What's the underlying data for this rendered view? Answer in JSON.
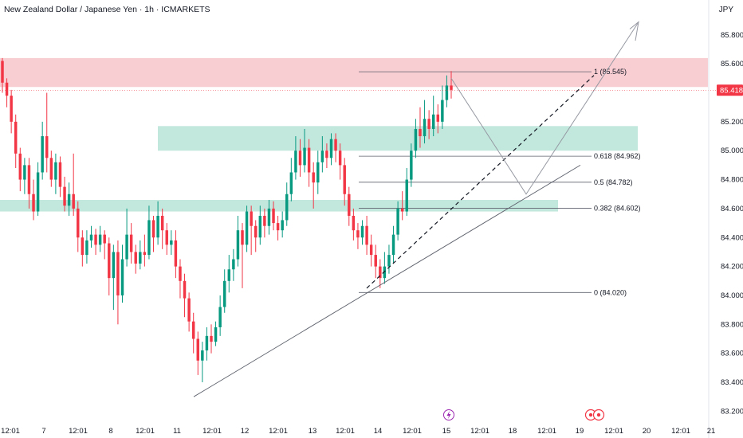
{
  "header": {
    "title": "New Zealand Dollar / Japanese Yen · 1h · ICMARKETS",
    "currency": "JPY"
  },
  "colors": {
    "up": "#089981",
    "down": "#f23645",
    "supply_zone": "#f7c6cb",
    "demand_zone": "#b7e4d8",
    "price_tag": "#f23645",
    "event_icon": "#9c27b0",
    "event_icon_red": "#f23645"
  },
  "current_price": {
    "label": "85.418",
    "value": 85.418
  },
  "event_icons": [
    {
      "name": "lightning-icon",
      "after_tick": "15"
    },
    {
      "name": "economic-event-icon",
      "after_tick": "19"
    }
  ],
  "chart_data": {
    "type": "candlestick",
    "ylim": [
      83.18,
      85.92
    ],
    "y_ticks": [
      "85.800",
      "85.600",
      "85.200",
      "85.000",
      "84.800",
      "84.600",
      "84.400",
      "84.200",
      "84.000",
      "83.800",
      "83.600",
      "83.400",
      "83.200"
    ],
    "x_ticks": [
      "12:01",
      "7",
      "12:01",
      "8",
      "12:01",
      "11",
      "12:01",
      "12",
      "12:01",
      "13",
      "12:01",
      "14",
      "12:01",
      "15",
      "12:01",
      "18",
      "12:01",
      "19",
      "12:01",
      "20",
      "12:01",
      "21"
    ],
    "candles": [
      [
        85.62,
        85.47,
        85.64,
        85.4
      ],
      [
        85.47,
        85.38,
        85.5,
        85.3
      ],
      [
        85.38,
        85.2,
        85.42,
        85.12
      ],
      [
        85.2,
        84.98,
        85.25,
        84.88
      ],
      [
        84.98,
        84.8,
        85.02,
        84.72
      ],
      [
        84.8,
        84.9,
        84.95,
        84.7
      ],
      [
        84.9,
        84.7,
        84.95,
        84.6
      ],
      [
        84.7,
        84.58,
        84.8,
        84.52
      ],
      [
        84.58,
        84.85,
        84.92,
        84.55
      ],
      [
        84.85,
        85.1,
        85.2,
        84.8
      ],
      [
        85.1,
        84.95,
        85.4,
        84.85
      ],
      [
        84.95,
        84.8,
        85.0,
        84.75
      ],
      [
        84.8,
        84.92,
        84.98,
        84.7
      ],
      [
        84.92,
        84.75,
        84.96,
        84.68
      ],
      [
        84.75,
        84.62,
        84.82,
        84.58
      ],
      [
        84.62,
        84.7,
        84.78,
        84.55
      ],
      [
        84.7,
        84.6,
        84.98,
        84.55
      ],
      [
        84.6,
        84.4,
        84.65,
        84.3
      ],
      [
        84.4,
        84.28,
        84.45,
        84.2
      ],
      [
        84.28,
        84.38,
        84.45,
        84.22
      ],
      [
        84.38,
        84.42,
        84.48,
        84.33
      ],
      [
        84.42,
        84.35,
        84.46,
        84.28
      ],
      [
        84.35,
        84.42,
        84.48,
        84.3
      ],
      [
        84.42,
        84.36,
        84.45,
        84.25
      ],
      [
        84.36,
        84.12,
        84.4,
        84.0
      ],
      [
        84.12,
        84.3,
        84.35,
        83.9
      ],
      [
        84.3,
        84.0,
        84.38,
        83.8
      ],
      [
        84.0,
        84.25,
        84.35,
        83.95
      ],
      [
        84.25,
        84.42,
        84.6,
        84.2
      ],
      [
        84.42,
        84.3,
        84.5,
        84.22
      ],
      [
        84.3,
        84.22,
        84.35,
        84.15
      ],
      [
        84.22,
        84.3,
        84.38,
        84.18
      ],
      [
        84.3,
        84.28,
        84.42,
        84.2
      ],
      [
        84.28,
        84.52,
        84.62,
        84.25
      ],
      [
        84.52,
        84.4,
        84.55,
        84.3
      ],
      [
        84.4,
        84.55,
        84.65,
        84.35
      ],
      [
        84.55,
        84.45,
        84.6,
        84.32
      ],
      [
        84.45,
        84.35,
        84.5,
        84.28
      ],
      [
        84.35,
        84.38,
        84.45,
        84.28
      ],
      [
        84.38,
        84.2,
        84.45,
        84.12
      ],
      [
        84.2,
        84.1,
        84.25,
        83.98
      ],
      [
        84.1,
        83.98,
        84.15,
        83.85
      ],
      [
        83.98,
        83.82,
        84.02,
        83.75
      ],
      [
        83.82,
        83.7,
        83.88,
        83.6
      ],
      [
        83.7,
        83.55,
        83.75,
        83.45
      ],
      [
        83.55,
        83.62,
        83.68,
        83.4
      ],
      [
        83.62,
        83.72,
        83.78,
        83.55
      ],
      [
        83.72,
        83.68,
        83.8,
        83.6
      ],
      [
        83.68,
        83.78,
        83.82,
        83.65
      ],
      [
        83.78,
        83.92,
        84.0,
        83.72
      ],
      [
        83.92,
        84.1,
        84.18,
        83.88
      ],
      [
        84.1,
        84.18,
        84.28,
        84.02
      ],
      [
        84.18,
        84.25,
        84.32,
        84.1
      ],
      [
        84.25,
        84.45,
        84.55,
        84.2
      ],
      [
        84.45,
        84.35,
        84.5,
        84.05
      ],
      [
        84.35,
        84.58,
        84.62,
        84.3
      ],
      [
        84.58,
        84.48,
        84.62,
        84.28
      ],
      [
        84.48,
        84.4,
        84.52,
        84.3
      ],
      [
        84.4,
        84.55,
        84.62,
        84.35
      ],
      [
        84.55,
        84.48,
        84.6,
        84.4
      ],
      [
        84.48,
        84.6,
        84.66,
        84.42
      ],
      [
        84.6,
        84.5,
        84.65,
        84.45
      ],
      [
        84.5,
        84.45,
        84.55,
        84.38
      ],
      [
        84.45,
        84.52,
        84.58,
        84.4
      ],
      [
        84.52,
        84.7,
        84.78,
        84.48
      ],
      [
        84.7,
        84.85,
        84.95,
        84.65
      ],
      [
        84.85,
        85.0,
        85.1,
        84.8
      ],
      [
        85.0,
        84.9,
        85.08,
        84.82
      ],
      [
        84.9,
        85.02,
        85.15,
        84.85
      ],
      [
        85.02,
        84.85,
        85.08,
        84.75
      ],
      [
        84.85,
        84.78,
        84.92,
        84.6
      ],
      [
        84.78,
        84.92,
        85.0,
        84.7
      ],
      [
        84.92,
        85.0,
        85.1,
        84.85
      ],
      [
        85.0,
        84.95,
        85.05,
        84.88
      ],
      [
        84.95,
        85.08,
        85.12,
        84.9
      ],
      [
        85.08,
        85.0,
        85.12,
        84.92
      ],
      [
        85.0,
        84.9,
        85.05,
        84.8
      ],
      [
        84.9,
        84.7,
        84.95,
        84.62
      ],
      [
        84.7,
        84.55,
        84.75,
        84.48
      ],
      [
        84.55,
        84.45,
        84.6,
        84.38
      ],
      [
        84.45,
        84.4,
        84.5,
        84.32
      ],
      [
        84.4,
        84.48,
        84.52,
        84.35
      ],
      [
        84.48,
        84.35,
        84.55,
        84.28
      ],
      [
        84.35,
        84.28,
        84.42,
        84.2
      ],
      [
        84.28,
        84.2,
        84.35,
        84.12
      ],
      [
        84.2,
        84.12,
        84.25,
        84.05
      ],
      [
        84.12,
        84.2,
        84.3,
        84.08
      ],
      [
        84.2,
        84.28,
        84.35,
        84.15
      ],
      [
        84.28,
        84.42,
        84.48,
        84.22
      ],
      [
        84.42,
        84.6,
        84.65,
        84.38
      ],
      [
        84.6,
        84.58,
        84.72,
        84.52
      ],
      [
        84.58,
        84.8,
        84.88,
        84.55
      ],
      [
        84.8,
        85.0,
        85.05,
        84.75
      ],
      [
        85.0,
        85.15,
        85.22,
        84.95
      ],
      [
        85.15,
        85.1,
        85.3,
        85.02
      ],
      [
        85.1,
        85.22,
        85.35,
        85.05
      ],
      [
        85.22,
        85.15,
        85.28,
        85.08
      ],
      [
        85.15,
        85.25,
        85.38,
        85.1
      ],
      [
        85.25,
        85.2,
        85.32,
        85.12
      ],
      [
        85.2,
        85.35,
        85.45,
        85.15
      ],
      [
        85.35,
        85.45,
        85.52,
        85.3
      ],
      [
        85.45,
        85.42,
        85.55,
        85.36
      ]
    ],
    "zones": [
      {
        "name": "supply-zone",
        "top": 85.64,
        "bottom": 85.44,
        "color": "#f7c6cb"
      },
      {
        "name": "demand-zone-upper",
        "top": 85.17,
        "bottom": 85.0,
        "color": "#b7e4d8"
      },
      {
        "name": "demand-zone-lower",
        "top": 84.66,
        "bottom": 84.58,
        "color": "#b7e4d8"
      }
    ],
    "fib_levels": [
      {
        "label": "1 (85.545)",
        "value": 85.545
      },
      {
        "label": "0.618 (84.962)",
        "value": 84.962
      },
      {
        "label": "0.5 (84.782)",
        "value": 84.782
      },
      {
        "label": "0.382 (84.602)",
        "value": 84.602
      },
      {
        "label": "0 (84.020)",
        "value": 84.02
      }
    ]
  }
}
